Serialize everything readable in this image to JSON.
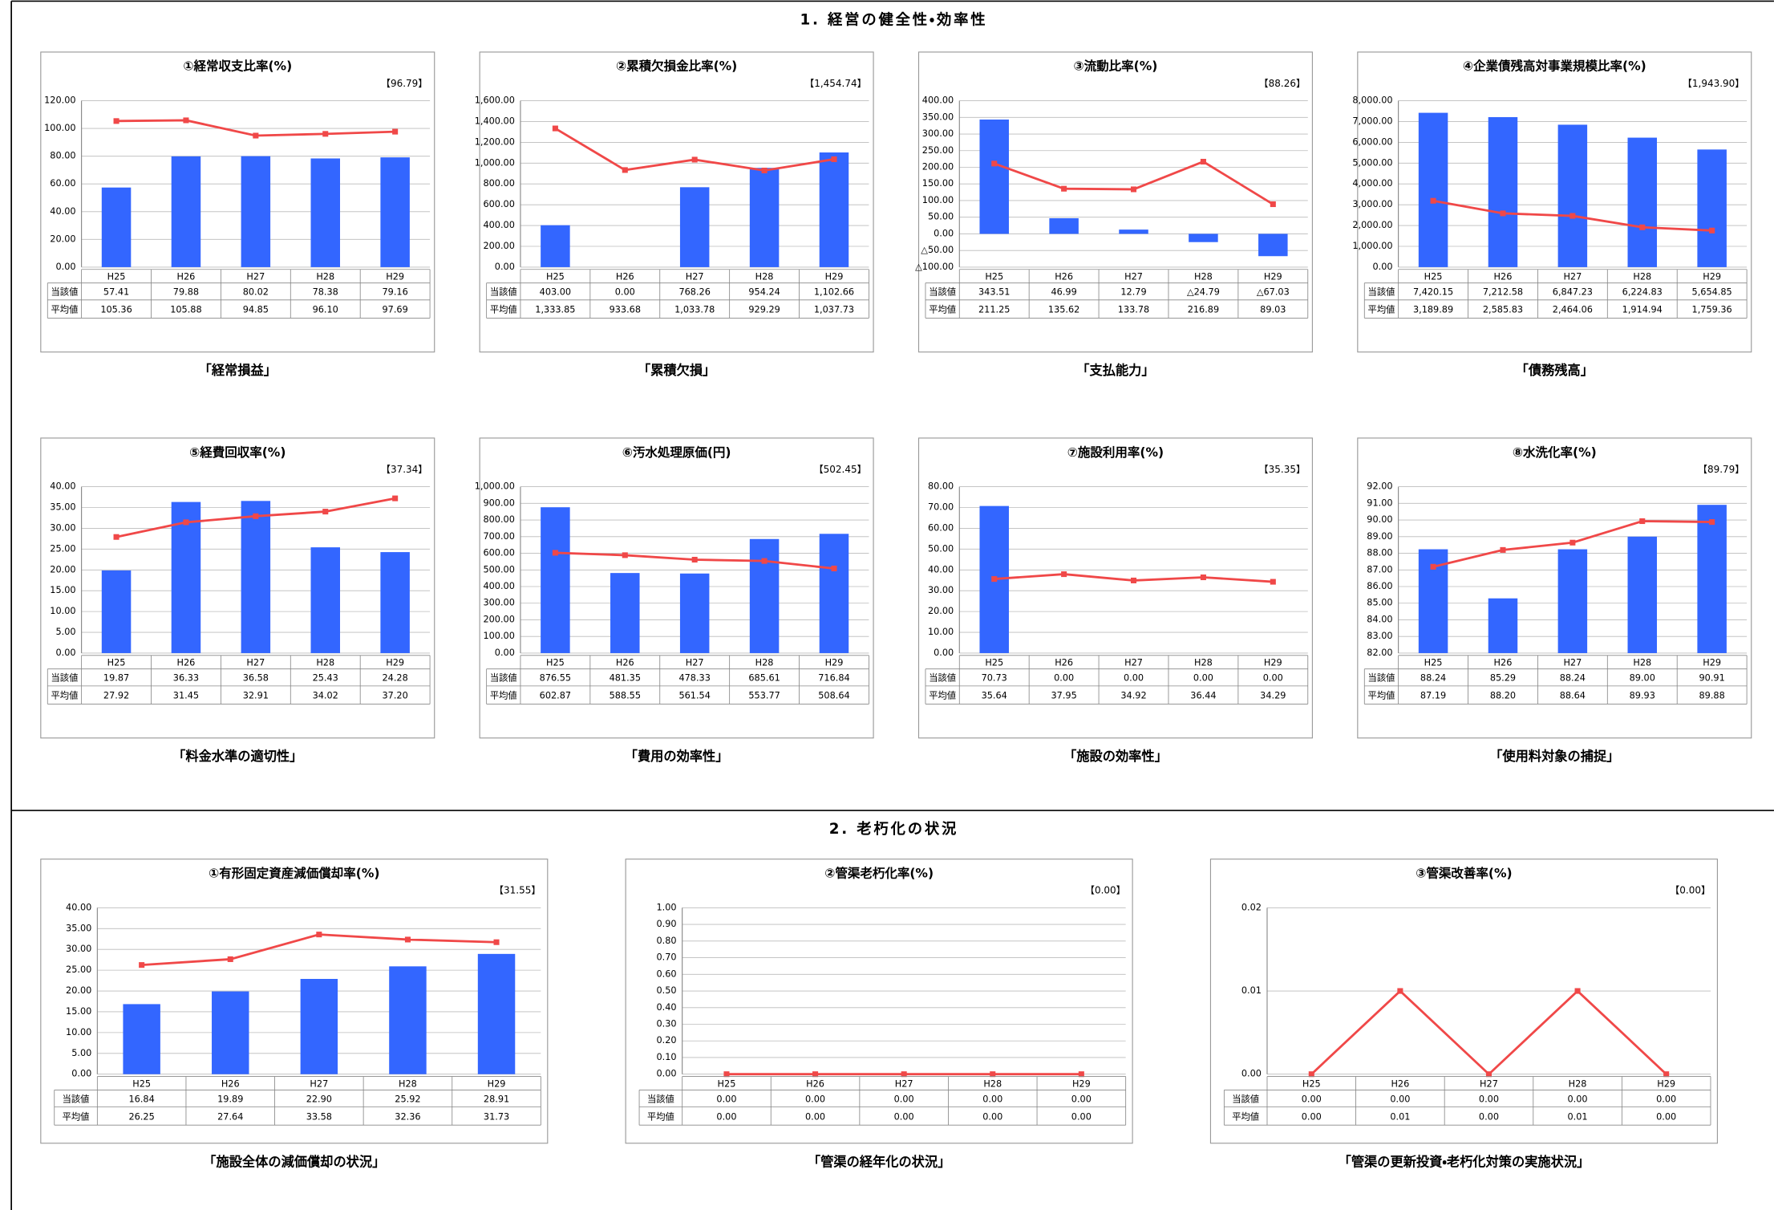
{
  "sections": [
    {
      "title": "1. 経営の健全性・効率性"
    },
    {
      "title": "2. 老朽化の状況"
    }
  ],
  "chart_data": [
    {
      "type": "combo",
      "title": "①経常収支比率(%)",
      "note": "【96.79】",
      "caption": "「経常損益」",
      "categories": [
        "H25",
        "H26",
        "H27",
        "H28",
        "H29"
      ],
      "ylim": [
        0,
        120
      ],
      "grid": true,
      "yticks": [
        {
          "value": 0,
          "label": "0.00"
        },
        {
          "value": 20,
          "label": "20.00"
        },
        {
          "value": 40,
          "label": "40.00"
        },
        {
          "value": 60,
          "label": "60.00"
        },
        {
          "value": 80,
          "label": "80.00"
        },
        {
          "value": 100,
          "label": "100.00"
        },
        {
          "value": 120,
          "label": "120.00"
        }
      ],
      "series": [
        {
          "name": "当該値",
          "type": "bar",
          "color": "#3366ff",
          "values": [
            57.41,
            79.88,
            80.02,
            78.38,
            79.16
          ],
          "value_labels": [
            "57.41",
            "79.88",
            "80.02",
            "78.38",
            "79.16"
          ]
        },
        {
          "name": "平均値",
          "type": "line",
          "color": "#f04848",
          "values": [
            105.36,
            105.88,
            94.85,
            96.1,
            97.69
          ],
          "value_labels": [
            "105.36",
            "105.88",
            "94.85",
            "96.10",
            "97.69"
          ]
        }
      ]
    },
    {
      "type": "combo",
      "title": "②累積欠損金比率(%)",
      "note": "【1,454.74】",
      "caption": "「累積欠損」",
      "categories": [
        "H25",
        "H26",
        "H27",
        "H28",
        "H29"
      ],
      "ylim": [
        0,
        1600
      ],
      "grid": true,
      "yticks": [
        {
          "value": 0,
          "label": "0.00"
        },
        {
          "value": 200,
          "label": "200.00"
        },
        {
          "value": 400,
          "label": "400.00"
        },
        {
          "value": 600,
          "label": "600.00"
        },
        {
          "value": 800,
          "label": "800.00"
        },
        {
          "value": 1000,
          "label": "1,000.00"
        },
        {
          "value": 1200,
          "label": "1,200.00"
        },
        {
          "value": 1400,
          "label": "1,400.00"
        },
        {
          "value": 1600,
          "label": "1,600.00"
        }
      ],
      "series": [
        {
          "name": "当該値",
          "type": "bar",
          "color": "#3366ff",
          "values": [
            403,
            0,
            768.26,
            954.24,
            1102.66
          ],
          "value_labels": [
            "403.00",
            "0.00",
            "768.26",
            "954.24",
            "1,102.66"
          ]
        },
        {
          "name": "平均値",
          "type": "line",
          "color": "#f04848",
          "values": [
            1333.85,
            933.68,
            1033.78,
            929.29,
            1037.73
          ],
          "value_labels": [
            "1,333.85",
            "933.68",
            "1,033.78",
            "929.29",
            "1,037.73"
          ]
        }
      ]
    },
    {
      "type": "combo",
      "title": "③流動比率(%)",
      "note": "【88.26】",
      "caption": "「支払能力」",
      "categories": [
        "H25",
        "H26",
        "H27",
        "H28",
        "H29"
      ],
      "ylim": [
        -100,
        400
      ],
      "grid": true,
      "yticks": [
        {
          "value": -100,
          "label": "△100.00"
        },
        {
          "value": -50,
          "label": "△50.00"
        },
        {
          "value": 0,
          "label": "0.00"
        },
        {
          "value": 50,
          "label": "50.00"
        },
        {
          "value": 100,
          "label": "100.00"
        },
        {
          "value": 150,
          "label": "150.00"
        },
        {
          "value": 200,
          "label": "200.00"
        },
        {
          "value": 250,
          "label": "250.00"
        },
        {
          "value": 300,
          "label": "300.00"
        },
        {
          "value": 350,
          "label": "350.00"
        },
        {
          "value": 400,
          "label": "400.00"
        }
      ],
      "series": [
        {
          "name": "当該値",
          "type": "bar",
          "color": "#3366ff",
          "values": [
            343.51,
            46.99,
            12.79,
            -24.79,
            -67.03
          ],
          "value_labels": [
            "343.51",
            "46.99",
            "12.79",
            "△24.79",
            "△67.03"
          ]
        },
        {
          "name": "平均値",
          "type": "line",
          "color": "#f04848",
          "values": [
            211.25,
            135.62,
            133.78,
            216.89,
            89.03
          ],
          "value_labels": [
            "211.25",
            "135.62",
            "133.78",
            "216.89",
            "89.03"
          ]
        }
      ]
    },
    {
      "type": "combo",
      "title": "④企業債残高対事業規模比率(%)",
      "note": "【1,943.90】",
      "caption": "「債務残高」",
      "categories": [
        "H25",
        "H26",
        "H27",
        "H28",
        "H29"
      ],
      "ylim": [
        0,
        8000
      ],
      "grid": true,
      "yticks": [
        {
          "value": 0,
          "label": "0.00"
        },
        {
          "value": 1000,
          "label": "1,000.00"
        },
        {
          "value": 2000,
          "label": "2,000.00"
        },
        {
          "value": 3000,
          "label": "3,000.00"
        },
        {
          "value": 4000,
          "label": "4,000.00"
        },
        {
          "value": 5000,
          "label": "5,000.00"
        },
        {
          "value": 6000,
          "label": "6,000.00"
        },
        {
          "value": 7000,
          "label": "7,000.00"
        },
        {
          "value": 8000,
          "label": "8,000.00"
        }
      ],
      "series": [
        {
          "name": "当該値",
          "type": "bar",
          "color": "#3366ff",
          "values": [
            7420.15,
            7212.58,
            6847.23,
            6224.83,
            5654.85
          ],
          "value_labels": [
            "7,420.15",
            "7,212.58",
            "6,847.23",
            "6,224.83",
            "5,654.85"
          ]
        },
        {
          "name": "平均値",
          "type": "line",
          "color": "#f04848",
          "values": [
            3189.89,
            2585.83,
            2464.06,
            1914.94,
            1759.36
          ],
          "value_labels": [
            "3,189.89",
            "2,585.83",
            "2,464.06",
            "1,914.94",
            "1,759.36"
          ]
        }
      ]
    },
    {
      "type": "combo",
      "title": "⑤経費回収率(%)",
      "note": "【37.34】",
      "caption": "「料金水準の適切性」",
      "categories": [
        "H25",
        "H26",
        "H27",
        "H28",
        "H29"
      ],
      "ylim": [
        0,
        40
      ],
      "grid": true,
      "yticks": [
        {
          "value": 0,
          "label": "0.00"
        },
        {
          "value": 5,
          "label": "5.00"
        },
        {
          "value": 10,
          "label": "10.00"
        },
        {
          "value": 15,
          "label": "15.00"
        },
        {
          "value": 20,
          "label": "20.00"
        },
        {
          "value": 25,
          "label": "25.00"
        },
        {
          "value": 30,
          "label": "30.00"
        },
        {
          "value": 35,
          "label": "35.00"
        },
        {
          "value": 40,
          "label": "40.00"
        }
      ],
      "series": [
        {
          "name": "当該値",
          "type": "bar",
          "color": "#3366ff",
          "values": [
            19.87,
            36.33,
            36.58,
            25.43,
            24.28
          ],
          "value_labels": [
            "19.87",
            "36.33",
            "36.58",
            "25.43",
            "24.28"
          ]
        },
        {
          "name": "平均値",
          "type": "line",
          "color": "#f04848",
          "values": [
            27.92,
            31.45,
            32.91,
            34.02,
            37.2
          ],
          "value_labels": [
            "27.92",
            "31.45",
            "32.91",
            "34.02",
            "37.20"
          ]
        }
      ]
    },
    {
      "type": "combo",
      "title": "⑥汚水処理原価(円)",
      "note": "【502.45】",
      "caption": "「費用の効率性」",
      "categories": [
        "H25",
        "H26",
        "H27",
        "H28",
        "H29"
      ],
      "ylim": [
        0,
        1000
      ],
      "grid": true,
      "yticks": [
        {
          "value": 0,
          "label": "0.00"
        },
        {
          "value": 100,
          "label": "100.00"
        },
        {
          "value": 200,
          "label": "200.00"
        },
        {
          "value": 300,
          "label": "300.00"
        },
        {
          "value": 400,
          "label": "400.00"
        },
        {
          "value": 500,
          "label": "500.00"
        },
        {
          "value": 600,
          "label": "600.00"
        },
        {
          "value": 700,
          "label": "700.00"
        },
        {
          "value": 800,
          "label": "800.00"
        },
        {
          "value": 900,
          "label": "900.00"
        },
        {
          "value": 1000,
          "label": "1,000.00"
        }
      ],
      "series": [
        {
          "name": "当該値",
          "type": "bar",
          "color": "#3366ff",
          "values": [
            876.55,
            481.35,
            478.33,
            685.61,
            716.84
          ],
          "value_labels": [
            "876.55",
            "481.35",
            "478.33",
            "685.61",
            "716.84"
          ]
        },
        {
          "name": "平均値",
          "type": "line",
          "color": "#f04848",
          "values": [
            602.87,
            588.55,
            561.54,
            553.77,
            508.64
          ],
          "value_labels": [
            "602.87",
            "588.55",
            "561.54",
            "553.77",
            "508.64"
          ]
        }
      ]
    },
    {
      "type": "combo",
      "title": "⑦施設利用率(%)",
      "note": "【35.35】",
      "caption": "「施設の効率性」",
      "categories": [
        "H25",
        "H26",
        "H27",
        "H28",
        "H29"
      ],
      "ylim": [
        0,
        80
      ],
      "grid": true,
      "yticks": [
        {
          "value": 0,
          "label": "0.00"
        },
        {
          "value": 10,
          "label": "10.00"
        },
        {
          "value": 20,
          "label": "20.00"
        },
        {
          "value": 30,
          "label": "30.00"
        },
        {
          "value": 40,
          "label": "40.00"
        },
        {
          "value": 50,
          "label": "50.00"
        },
        {
          "value": 60,
          "label": "60.00"
        },
        {
          "value": 70,
          "label": "70.00"
        },
        {
          "value": 80,
          "label": "80.00"
        }
      ],
      "series": [
        {
          "name": "当該値",
          "type": "bar",
          "color": "#3366ff",
          "values": [
            70.73,
            0,
            0,
            0,
            0
          ],
          "value_labels": [
            "70.73",
            "0.00",
            "0.00",
            "0.00",
            "0.00"
          ]
        },
        {
          "name": "平均値",
          "type": "line",
          "color": "#f04848",
          "values": [
            35.64,
            37.95,
            34.92,
            36.44,
            34.29
          ],
          "value_labels": [
            "35.64",
            "37.95",
            "34.92",
            "36.44",
            "34.29"
          ]
        }
      ]
    },
    {
      "type": "combo",
      "title": "⑧水洗化率(%)",
      "note": "【89.79】",
      "caption": "「使用料対象の捕捉」",
      "categories": [
        "H25",
        "H26",
        "H27",
        "H28",
        "H29"
      ],
      "ylim": [
        82,
        92
      ],
      "grid": true,
      "yticks": [
        {
          "value": 82,
          "label": "82.00"
        },
        {
          "value": 83,
          "label": "83.00"
        },
        {
          "value": 84,
          "label": "84.00"
        },
        {
          "value": 85,
          "label": "85.00"
        },
        {
          "value": 86,
          "label": "86.00"
        },
        {
          "value": 87,
          "label": "87.00"
        },
        {
          "value": 88,
          "label": "88.00"
        },
        {
          "value": 89,
          "label": "89.00"
        },
        {
          "value": 90,
          "label": "90.00"
        },
        {
          "value": 91,
          "label": "91.00"
        },
        {
          "value": 92,
          "label": "92.00"
        }
      ],
      "series": [
        {
          "name": "当該値",
          "type": "bar",
          "color": "#3366ff",
          "values": [
            88.24,
            85.29,
            88.24,
            89,
            90.91
          ],
          "value_labels": [
            "88.24",
            "85.29",
            "88.24",
            "89.00",
            "90.91"
          ]
        },
        {
          "name": "平均値",
          "type": "line",
          "color": "#f04848",
          "values": [
            87.19,
            88.2,
            88.64,
            89.93,
            89.88
          ],
          "value_labels": [
            "87.19",
            "88.20",
            "88.64",
            "89.93",
            "89.88"
          ]
        }
      ]
    },
    {
      "type": "combo",
      "title": "①有形固定資産減価償却率(%)",
      "note": "【31.55】",
      "caption": "「施設全体の減価償却の状況」",
      "categories": [
        "H25",
        "H26",
        "H27",
        "H28",
        "H29"
      ],
      "ylim": [
        0,
        40
      ],
      "grid": true,
      "yticks": [
        {
          "value": 0,
          "label": "0.00"
        },
        {
          "value": 5,
          "label": "5.00"
        },
        {
          "value": 10,
          "label": "10.00"
        },
        {
          "value": 15,
          "label": "15.00"
        },
        {
          "value": 20,
          "label": "20.00"
        },
        {
          "value": 25,
          "label": "25.00"
        },
        {
          "value": 30,
          "label": "30.00"
        },
        {
          "value": 35,
          "label": "35.00"
        },
        {
          "value": 40,
          "label": "40.00"
        }
      ],
      "series": [
        {
          "name": "当該値",
          "type": "bar",
          "color": "#3366ff",
          "values": [
            16.84,
            19.89,
            22.9,
            25.92,
            28.91
          ],
          "value_labels": [
            "16.84",
            "19.89",
            "22.90",
            "25.92",
            "28.91"
          ]
        },
        {
          "name": "平均値",
          "type": "line",
          "color": "#f04848",
          "values": [
            26.25,
            27.64,
            33.58,
            32.36,
            31.73
          ],
          "value_labels": [
            "26.25",
            "27.64",
            "33.58",
            "32.36",
            "31.73"
          ]
        }
      ]
    },
    {
      "type": "combo",
      "title": "②管渠老朽化率(%)",
      "note": "【0.00】",
      "caption": "「管渠の経年化の状況」",
      "categories": [
        "H25",
        "H26",
        "H27",
        "H28",
        "H29"
      ],
      "ylim": [
        0,
        1
      ],
      "grid": true,
      "yticks": [
        {
          "value": 0,
          "label": "0.00"
        },
        {
          "value": 0.1,
          "label": "0.10"
        },
        {
          "value": 0.2,
          "label": "0.20"
        },
        {
          "value": 0.3,
          "label": "0.30"
        },
        {
          "value": 0.4,
          "label": "0.40"
        },
        {
          "value": 0.5,
          "label": "0.50"
        },
        {
          "value": 0.6,
          "label": "0.60"
        },
        {
          "value": 0.7,
          "label": "0.70"
        },
        {
          "value": 0.8,
          "label": "0.80"
        },
        {
          "value": 0.9,
          "label": "0.90"
        },
        {
          "value": 1,
          "label": "1.00"
        }
      ],
      "series": [
        {
          "name": "当該値",
          "type": "bar",
          "color": "#3366ff",
          "values": [
            0,
            0,
            0,
            0,
            0
          ],
          "value_labels": [
            "0.00",
            "0.00",
            "0.00",
            "0.00",
            "0.00"
          ]
        },
        {
          "name": "平均値",
          "type": "line",
          "color": "#f04848",
          "values": [
            0,
            0,
            0,
            0,
            0
          ],
          "value_labels": [
            "0.00",
            "0.00",
            "0.00",
            "0.00",
            "0.00"
          ]
        }
      ]
    },
    {
      "type": "combo",
      "title": "③管渠改善率(%)",
      "note": "【0.00】",
      "caption": "「管渠の更新投資・老朽化対策の実施状況」",
      "categories": [
        "H25",
        "H26",
        "H27",
        "H28",
        "H29"
      ],
      "ylim": [
        0,
        0.02
      ],
      "grid": true,
      "yticks": [
        {
          "value": 0,
          "label": "0.00"
        },
        {
          "value": 0.01,
          "label": "0.01"
        },
        {
          "value": 0.02,
          "label": "0.02"
        }
      ],
      "series": [
        {
          "name": "当該値",
          "type": "bar",
          "color": "#3366ff",
          "values": [
            0,
            0,
            0,
            0,
            0
          ],
          "value_labels": [
            "0.00",
            "0.00",
            "0.00",
            "0.00",
            "0.00"
          ]
        },
        {
          "name": "平均値",
          "type": "line",
          "color": "#f04848",
          "values": [
            0,
            0.01,
            0,
            0.01,
            0
          ],
          "value_labels": [
            "0.00",
            "0.01",
            "0.00",
            "0.01",
            "0.00"
          ]
        }
      ]
    }
  ]
}
